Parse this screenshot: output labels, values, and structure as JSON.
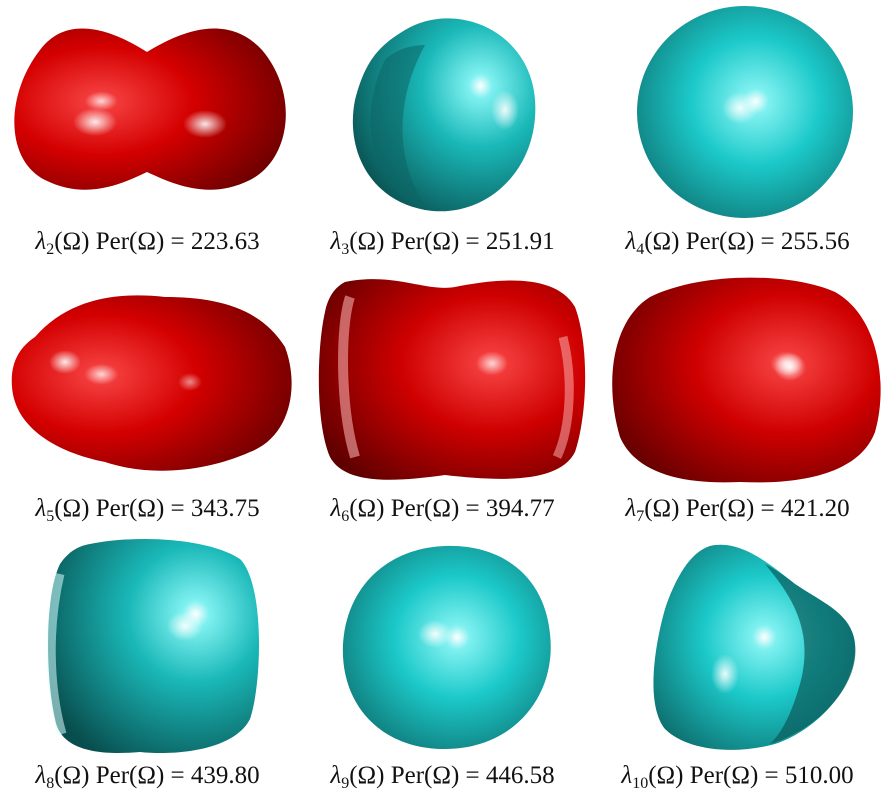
{
  "figure": {
    "panels": [
      {
        "index": "2",
        "value": "223.63",
        "color": "red"
      },
      {
        "index": "3",
        "value": "251.91",
        "color": "cyan"
      },
      {
        "index": "4",
        "value": "255.56",
        "color": "cyan"
      },
      {
        "index": "5",
        "value": "343.75",
        "color": "red"
      },
      {
        "index": "6",
        "value": "394.77",
        "color": "red"
      },
      {
        "index": "7",
        "value": "421.20",
        "color": "red"
      },
      {
        "index": "8",
        "value": "439.80",
        "color": "cyan"
      },
      {
        "index": "9",
        "value": "446.58",
        "color": "cyan"
      },
      {
        "index": "10",
        "value": "510.00",
        "color": "cyan"
      }
    ],
    "lambda_symbol": "λ",
    "omega_symbol": "Ω",
    "per_label": "Per",
    "equals_sign": "=",
    "colors": {
      "red": "#d40000",
      "cyan": "#19c6c6"
    }
  }
}
